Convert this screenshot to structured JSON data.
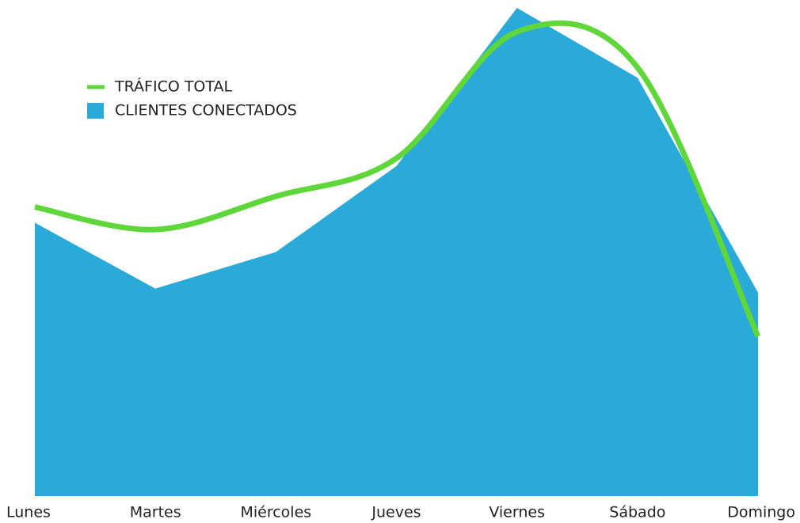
{
  "chart_data": {
    "type": "area",
    "categories": [
      "Lunes",
      "Martes",
      "Miércoles",
      "Jueves",
      "Viernes",
      "Sábado",
      "Domingo"
    ],
    "series": [
      {
        "name": "CLIENTES CONECTADOS",
        "type": "area",
        "color": "#2aaad8",
        "values": [
          56,
          42.5,
          50,
          67.6,
          100,
          85.7,
          41.7
        ]
      },
      {
        "name": "TRÁFICO TOTAL",
        "type": "line",
        "color": "#5fd63a",
        "values": [
          59.2,
          54.6,
          61.4,
          69.2,
          95.1,
          87.8,
          32.7
        ]
      }
    ],
    "ylim": [
      0,
      100
    ],
    "legend": "upper left"
  }
}
